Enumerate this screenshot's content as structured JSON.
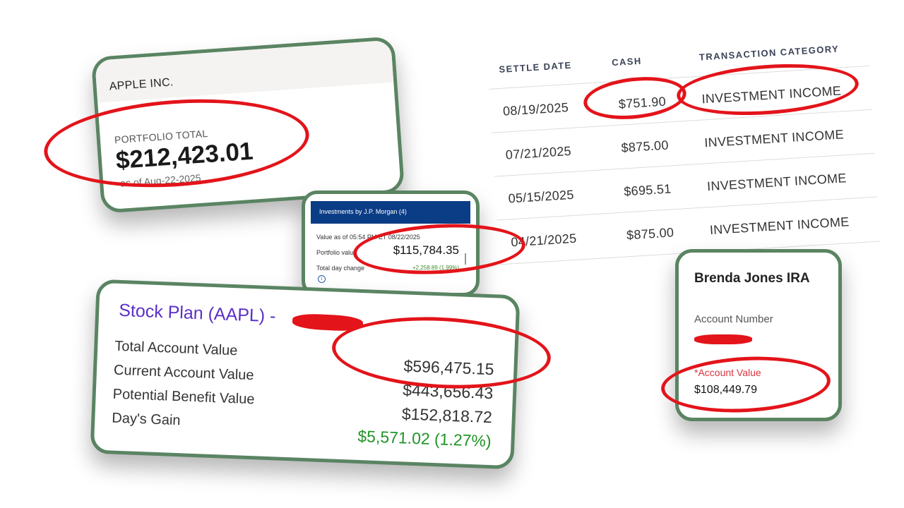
{
  "apple_card": {
    "company": "APPLE INC.",
    "portfolio_label": "PORTFOLIO TOTAL",
    "portfolio_value": "$212,423.01",
    "as_of": "as of Aug-22-2025"
  },
  "jpm_card": {
    "header": "Investments by J.P. Morgan (4)",
    "value_as_of": "Value as of 05:54 PM ET 08/22/2025",
    "portfolio_label": "Portfolio value",
    "portfolio_value": "$115,784.35",
    "day_change_label": "Total day change",
    "day_change_value": "+2,258.89 (1.99%)"
  },
  "stock_plan": {
    "title": "Stock Plan (AAPL) -",
    "rows": [
      {
        "label": "Total Account Value",
        "value": "$596,475.15"
      },
      {
        "label": "Current Account Value",
        "value": "$443,656.43"
      },
      {
        "label": "Potential Benefit Value",
        "value": "$152,818.72"
      },
      {
        "label": "Day's Gain",
        "value": "$5,571.02 (1.27%)"
      }
    ],
    "gain_color": "#1f9424"
  },
  "transactions": {
    "headers": [
      "SETTLE DATE",
      "CASH",
      "TRANSACTION CATEGORY"
    ],
    "rows": [
      {
        "date": "08/19/2025",
        "cash": "$751.90",
        "category": "INVESTMENT INCOME"
      },
      {
        "date": "07/21/2025",
        "cash": "$875.00",
        "category": "INVESTMENT INCOME"
      },
      {
        "date": "05/15/2025",
        "cash": "$695.51",
        "category": "INVESTMENT INCOME"
      },
      {
        "date": "04/21/2025",
        "cash": "$875.00",
        "category": "INVESTMENT INCOME"
      }
    ]
  },
  "ira_card": {
    "name": "Brenda Jones IRA",
    "account_number_label": "Account Number",
    "account_value_label": "*Account Value",
    "account_value": "$108,449.79"
  },
  "colors": {
    "card_border": "#5a8462",
    "highlight_ring": "#e3141a",
    "stock_plan_title": "#5a2fc8",
    "jpm_header": "#0b3c86"
  }
}
